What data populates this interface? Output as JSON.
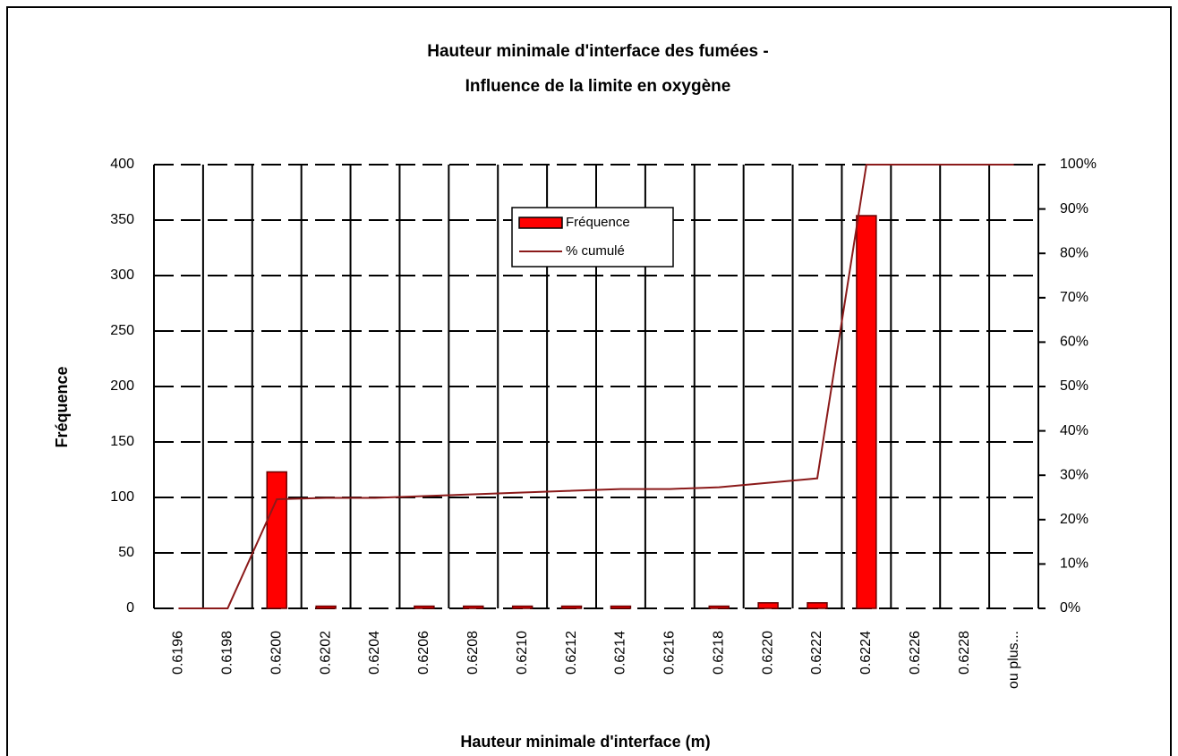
{
  "chart_data": {
    "type": "bar",
    "title": "Hauteur minimale d'interface des fumées -",
    "subtitle": "Influence de la limite en oxygène",
    "x_label": "Hauteur minimale d'interface (m)",
    "y_label": "Fréquence",
    "categories": [
      "0.6196",
      "0.6198",
      "0.6200",
      "0.6202",
      "0.6204",
      "0.6206",
      "0.6208",
      "0.6210",
      "0.6212",
      "0.6214",
      "0.6216",
      "0.6218",
      "0.6220",
      "0.6222",
      "0.6224",
      "0.6226",
      "0.6228",
      "ou plus..."
    ],
    "series": [
      {
        "name": "Fréquence",
        "type": "bar",
        "color": "#ff0000",
        "values": [
          0,
          0,
          123,
          2,
          0,
          2,
          2,
          2,
          2,
          2,
          0,
          2,
          5,
          5,
          354,
          0,
          0,
          0
        ]
      },
      {
        "name": "% cumulé",
        "type": "line",
        "axis": "y2",
        "color": "#8b1a1a",
        "values": [
          0,
          0,
          24.6,
          24.9,
          24.9,
          25.3,
          25.7,
          26.1,
          26.5,
          26.9,
          26.9,
          27.3,
          28.3,
          29.3,
          100,
          100,
          100,
          100
        ]
      }
    ],
    "ylim": [
      0,
      400
    ],
    "yticks": [
      0,
      50,
      100,
      150,
      200,
      250,
      300,
      350,
      400
    ],
    "y2lim": [
      0,
      100
    ],
    "y2ticks": [
      {
        "value": 0,
        "label": "0%"
      },
      {
        "value": 10,
        "label": "10%"
      },
      {
        "value": 20,
        "label": "20%"
      },
      {
        "value": 30,
        "label": "30%"
      },
      {
        "value": 40,
        "label": "40%"
      },
      {
        "value": 50,
        "label": "50%"
      },
      {
        "value": 60,
        "label": "60%"
      },
      {
        "value": 70,
        "label": "70%"
      },
      {
        "value": 80,
        "label": "80%"
      },
      {
        "value": 90,
        "label": "90%"
      },
      {
        "value": 100,
        "label": "100%"
      }
    ],
    "grid": true,
    "legend": "top"
  }
}
